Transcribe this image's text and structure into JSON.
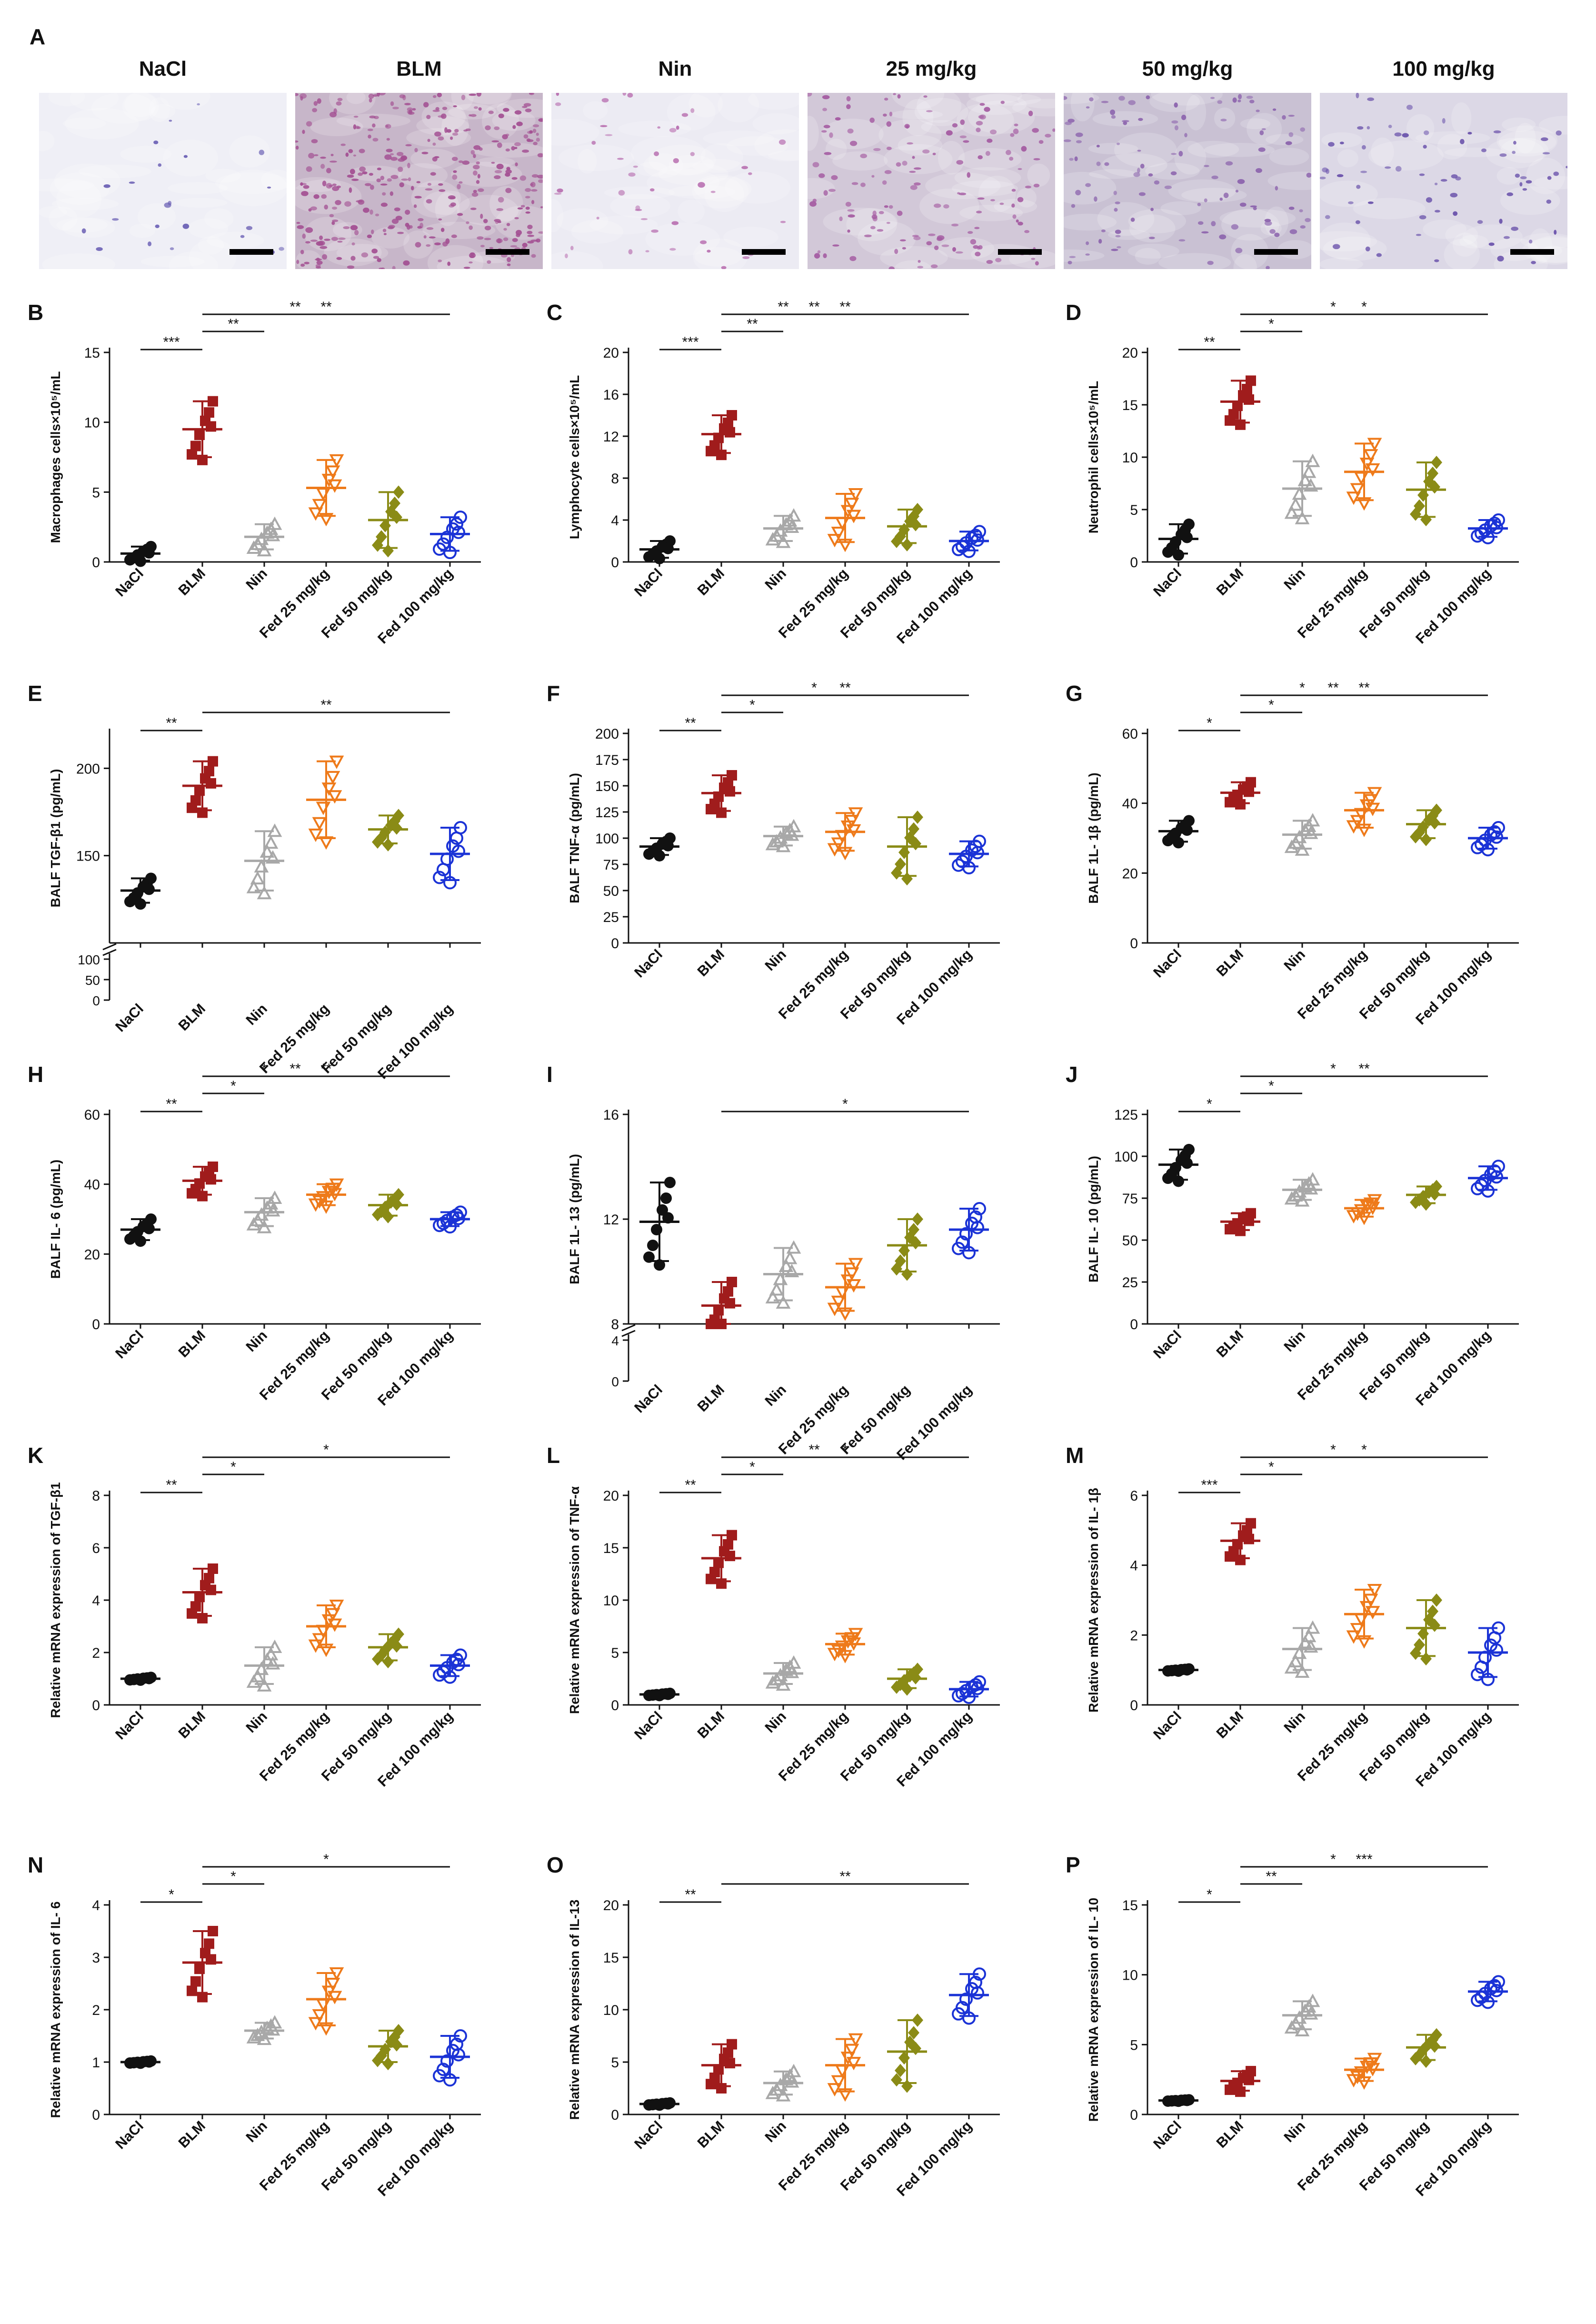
{
  "figure": {
    "micrograph_panel_letter": "A",
    "micrographs": [
      {
        "label": "NaCl",
        "stain": "#efeff6",
        "cell_color": "#6a5fb4",
        "cell_count": 22
      },
      {
        "label": "BLM",
        "stain": "#c7b6c9",
        "cell_color": "#a34f92",
        "cell_count": 360
      },
      {
        "label": "Nin",
        "stain": "#ecebf3",
        "cell_color": "#b86fb0",
        "cell_count": 45
      },
      {
        "label": "25 mg/kg",
        "stain": "#d2c8d8",
        "cell_color": "#a45aa1",
        "cell_count": 150
      },
      {
        "label": "50 mg/kg",
        "stain": "#c9c1d3",
        "cell_color": "#8c63ad",
        "cell_count": 110
      },
      {
        "label": "100 mg/kg",
        "stain": "#dcd8e6",
        "cell_color": "#6a52ab",
        "cell_count": 70
      }
    ]
  },
  "chart_data": [
    {
      "panel": "B",
      "type": "scatter",
      "ylabel": "Macrophages cells×10⁵/mL",
      "ylim": [
        0,
        15
      ],
      "yticks": [
        0,
        5,
        10,
        15
      ],
      "categories": [
        "NaCl",
        "BLM",
        "Nin",
        "Fed 25 mg/kg",
        "Fed 50 mg/kg",
        "Fed 100 mg/kg"
      ],
      "means": [
        0.6,
        9.5,
        1.8,
        5.3,
        3.0,
        2.0
      ],
      "sds": [
        0.5,
        2.0,
        0.9,
        2.0,
        2.0,
        1.2
      ],
      "sig": [
        {
          "from": 0,
          "to": 1,
          "label": "***"
        },
        {
          "from": 1,
          "to": 2,
          "label": "**"
        },
        {
          "from": 1,
          "to": 4,
          "label": "**"
        },
        {
          "from": 1,
          "to": 5,
          "label": "**"
        }
      ]
    },
    {
      "panel": "C",
      "type": "scatter",
      "ylabel": "Lymphocyte cells×10⁵/mL",
      "ylim": [
        0,
        20
      ],
      "yticks": [
        0,
        4,
        8,
        12,
        16,
        20
      ],
      "categories": [
        "NaCl",
        "BLM",
        "Nin",
        "Fed 25 mg/kg",
        "Fed 50 mg/kg",
        "Fed 100 mg/kg"
      ],
      "means": [
        1.2,
        12.2,
        3.2,
        4.2,
        3.4,
        2.0
      ],
      "sds": [
        0.8,
        1.8,
        1.2,
        2.3,
        1.6,
        0.9
      ],
      "sig": [
        {
          "from": 0,
          "to": 1,
          "label": "***"
        },
        {
          "from": 1,
          "to": 2,
          "label": "**"
        },
        {
          "from": 1,
          "to": 3,
          "label": "**"
        },
        {
          "from": 1,
          "to": 4,
          "label": "**"
        },
        {
          "from": 1,
          "to": 5,
          "label": "**"
        }
      ]
    },
    {
      "panel": "D",
      "type": "scatter",
      "ylabel": "Neutrophil cells×10⁵/mL",
      "ylim": [
        0,
        20
      ],
      "yticks": [
        0,
        5,
        10,
        15,
        20
      ],
      "categories": [
        "NaCl",
        "BLM",
        "Nin",
        "Fed 25 mg/kg",
        "Fed 50 mg/kg",
        "Fed 100 mg/kg"
      ],
      "means": [
        2.2,
        15.3,
        7.0,
        8.6,
        6.9,
        3.2
      ],
      "sds": [
        1.4,
        2.0,
        2.6,
        2.7,
        2.6,
        0.8
      ],
      "sig": [
        {
          "from": 0,
          "to": 1,
          "label": "**"
        },
        {
          "from": 1,
          "to": 2,
          "label": "*"
        },
        {
          "from": 1,
          "to": 4,
          "label": "*"
        },
        {
          "from": 1,
          "to": 5,
          "label": "*"
        }
      ]
    },
    {
      "panel": "E",
      "type": "scatter",
      "ylabel": "BALF TGF-β1 (pg/mL)",
      "ylim": [
        100,
        220
      ],
      "yticks": [
        150,
        200
      ],
      "broken_axis": {
        "lower_ticks": [
          "0",
          "50",
          "100"
        ],
        "break_value": 110
      },
      "categories": [
        "NaCl",
        "BLM",
        "Nin",
        "Fed 25 mg/kg",
        "Fed 50 mg/kg",
        "Fed 100 mg/kg"
      ],
      "means": [
        130,
        190,
        147,
        182,
        165,
        151
      ],
      "sds": [
        7,
        14,
        17,
        22,
        8,
        15
      ],
      "sig": [
        {
          "from": 0,
          "to": 1,
          "label": "**"
        },
        {
          "from": 1,
          "to": 5,
          "label": "**"
        }
      ]
    },
    {
      "panel": "F",
      "type": "scatter",
      "ylabel": "BALF TNF-α (pg/mL)",
      "ylim": [
        0,
        200
      ],
      "yticks": [
        0,
        25,
        50,
        75,
        100,
        125,
        150,
        175,
        200
      ],
      "categories": [
        "NaCl",
        "BLM",
        "Nin",
        "Fed 25 mg/kg",
        "Fed 50 mg/kg",
        "Fed 100 mg/kg"
      ],
      "means": [
        92,
        143,
        102,
        106,
        92,
        85
      ],
      "sds": [
        8,
        17,
        9,
        18,
        28,
        12
      ],
      "sig": [
        {
          "from": 0,
          "to": 1,
          "label": "**"
        },
        {
          "from": 1,
          "to": 2,
          "label": "*"
        },
        {
          "from": 1,
          "to": 4,
          "label": "*"
        },
        {
          "from": 1,
          "to": 5,
          "label": "**"
        }
      ]
    },
    {
      "panel": "G",
      "type": "scatter",
      "ylabel": "BALF 1L- 1β (pg/mL)",
      "ylim": [
        0,
        60
      ],
      "yticks": [
        0,
        20,
        40,
        60
      ],
      "categories": [
        "NaCl",
        "BLM",
        "Nin",
        "Fed 25 mg/kg",
        "Fed 50 mg/kg",
        "Fed 100 mg/kg"
      ],
      "means": [
        32,
        43,
        31,
        38,
        34,
        30
      ],
      "sds": [
        3,
        3,
        4,
        5,
        4,
        3
      ],
      "sig": [
        {
          "from": 0,
          "to": 1,
          "label": "*"
        },
        {
          "from": 1,
          "to": 2,
          "label": "*"
        },
        {
          "from": 1,
          "to": 3,
          "label": "*"
        },
        {
          "from": 1,
          "to": 4,
          "label": "**"
        },
        {
          "from": 1,
          "to": 5,
          "label": "**"
        }
      ]
    },
    {
      "panel": "H",
      "type": "scatter",
      "ylabel": "BALF IL- 6 (pg/mL)",
      "ylim": [
        0,
        60
      ],
      "yticks": [
        0,
        20,
        40,
        60
      ],
      "categories": [
        "NaCl",
        "BLM",
        "Nin",
        "Fed 25 mg/kg",
        "Fed 50 mg/kg",
        "Fed 100 mg/kg"
      ],
      "means": [
        27,
        41,
        32,
        37,
        34,
        30
      ],
      "sds": [
        3,
        4,
        4,
        3,
        3,
        2
      ],
      "sig": [
        {
          "from": 0,
          "to": 1,
          "label": "**"
        },
        {
          "from": 1,
          "to": 2,
          "label": "*"
        },
        {
          "from": 1,
          "to": 3,
          "label": "*"
        },
        {
          "from": 1,
          "to": 4,
          "label": "**"
        },
        {
          "from": 1,
          "to": 5,
          "label": "**"
        }
      ]
    },
    {
      "panel": "I",
      "type": "scatter",
      "ylabel": "BALF 1L- 13 (pg/mL)",
      "ylim": [
        8,
        16
      ],
      "yticks": [
        8,
        12,
        16
      ],
      "broken_axis": {
        "lower_ticks": [
          "0",
          "4"
        ],
        "break_value": 7.6
      },
      "categories": [
        "NaCl",
        "BLM",
        "Nin",
        "Fed 25 mg/kg",
        "Fed 50 mg/kg",
        "Fed 100 mg/kg"
      ],
      "means": [
        11.9,
        8.7,
        9.9,
        9.4,
        11.0,
        11.6
      ],
      "sds": [
        1.5,
        0.9,
        1.0,
        0.9,
        1.0,
        0.8
      ],
      "sig": [
        {
          "from": 1,
          "to": 5,
          "label": "*"
        }
      ]
    },
    {
      "panel": "J",
      "type": "scatter",
      "ylabel": "BALF IL- 10 (pg/mL)",
      "ylim": [
        0,
        125
      ],
      "yticks": [
        0,
        25,
        50,
        75,
        100,
        125
      ],
      "categories": [
        "NaCl",
        "BLM",
        "Nin",
        "Fed 25 mg/kg",
        "Fed 50 mg/kg",
        "Fed 100 mg/kg"
      ],
      "means": [
        95,
        61,
        80,
        69,
        77,
        87
      ],
      "sds": [
        9,
        5,
        6,
        5,
        5,
        7
      ],
      "sig": [
        {
          "from": 0,
          "to": 1,
          "label": "*"
        },
        {
          "from": 1,
          "to": 2,
          "label": "*"
        },
        {
          "from": 1,
          "to": 4,
          "label": "*"
        },
        {
          "from": 1,
          "to": 5,
          "label": "**"
        }
      ]
    },
    {
      "panel": "K",
      "type": "scatter",
      "ylabel": "Relative mRNA expression of TGF-β1",
      "ylim": [
        0,
        8
      ],
      "yticks": [
        0,
        2,
        4,
        6,
        8
      ],
      "categories": [
        "NaCl",
        "BLM",
        "Nin",
        "Fed 25 mg/kg",
        "Fed 50 mg/kg",
        "Fed 100 mg/kg"
      ],
      "means": [
        1.0,
        4.3,
        1.5,
        3.0,
        2.2,
        1.5
      ],
      "sds": [
        0.05,
        0.9,
        0.7,
        0.8,
        0.5,
        0.4
      ],
      "sig": [
        {
          "from": 0,
          "to": 1,
          "label": "**"
        },
        {
          "from": 1,
          "to": 2,
          "label": "*"
        },
        {
          "from": 1,
          "to": 5,
          "label": "*"
        }
      ]
    },
    {
      "panel": "L",
      "type": "scatter",
      "ylabel": "Relative mRNA expression of TNF-α",
      "ylim": [
        0,
        20
      ],
      "yticks": [
        0,
        5,
        10,
        15,
        20
      ],
      "categories": [
        "NaCl",
        "BLM",
        "Nin",
        "Fed 25 mg/kg",
        "Fed 50 mg/kg",
        "Fed 100 mg/kg"
      ],
      "means": [
        1.0,
        14.0,
        3.0,
        5.8,
        2.5,
        1.5
      ],
      "sds": [
        0.1,
        2.2,
        1.0,
        1.0,
        0.9,
        0.7
      ],
      "sig": [
        {
          "from": 0,
          "to": 1,
          "label": "**"
        },
        {
          "from": 1,
          "to": 2,
          "label": "*"
        },
        {
          "from": 1,
          "to": 4,
          "label": "**"
        },
        {
          "from": 1,
          "to": 5,
          "label": "*"
        }
      ]
    },
    {
      "panel": "M",
      "type": "scatter",
      "ylabel": "Relative mRNA expression of IL- 1β",
      "ylim": [
        0,
        6
      ],
      "yticks": [
        0,
        2,
        4,
        6
      ],
      "categories": [
        "NaCl",
        "BLM",
        "Nin",
        "Fed 25 mg/kg",
        "Fed 50 mg/kg",
        "Fed 100 mg/kg"
      ],
      "means": [
        1.0,
        4.7,
        1.6,
        2.6,
        2.2,
        1.5
      ],
      "sds": [
        0.03,
        0.5,
        0.6,
        0.7,
        0.8,
        0.7
      ],
      "sig": [
        {
          "from": 0,
          "to": 1,
          "label": "***"
        },
        {
          "from": 1,
          "to": 2,
          "label": "*"
        },
        {
          "from": 1,
          "to": 4,
          "label": "*"
        },
        {
          "from": 1,
          "to": 5,
          "label": "*"
        }
      ]
    },
    {
      "panel": "N",
      "type": "scatter",
      "ylabel": "Relative mRNA expression of IL- 6",
      "ylim": [
        0,
        4
      ],
      "yticks": [
        0,
        1,
        2,
        3,
        4
      ],
      "categories": [
        "NaCl",
        "BLM",
        "Nin",
        "Fed 25 mg/kg",
        "Fed 50 mg/kg",
        "Fed 100 mg/kg"
      ],
      "means": [
        1.0,
        2.9,
        1.6,
        2.2,
        1.3,
        1.1
      ],
      "sds": [
        0.02,
        0.6,
        0.15,
        0.5,
        0.3,
        0.4
      ],
      "sig": [
        {
          "from": 0,
          "to": 1,
          "label": "*"
        },
        {
          "from": 1,
          "to": 2,
          "label": "*"
        },
        {
          "from": 1,
          "to": 5,
          "label": "*"
        }
      ]
    },
    {
      "panel": "O",
      "type": "scatter",
      "ylabel": "Relative mRNA expression of IL-13",
      "ylim": [
        0,
        20
      ],
      "yticks": [
        0,
        5,
        10,
        15,
        20
      ],
      "categories": [
        "NaCl",
        "BLM",
        "Nin",
        "Fed 25 mg/kg",
        "Fed 50 mg/kg",
        "Fed 100 mg/kg"
      ],
      "means": [
        1.0,
        4.7,
        3.0,
        4.7,
        6.0,
        11.4
      ],
      "sds": [
        0.1,
        2.0,
        1.1,
        2.5,
        3.0,
        2.0
      ],
      "sig": [
        {
          "from": 0,
          "to": 1,
          "label": "**"
        },
        {
          "from": 1,
          "to": 5,
          "label": "**"
        }
      ]
    },
    {
      "panel": "P",
      "type": "scatter",
      "ylabel": "Relative mRNA expression of IL- 10",
      "ylim": [
        0,
        15
      ],
      "yticks": [
        0,
        5,
        10,
        15
      ],
      "categories": [
        "NaCl",
        "BLM",
        "Nin",
        "Fed 25 mg/kg",
        "Fed 50 mg/kg",
        "Fed 100 mg/kg"
      ],
      "means": [
        1.0,
        2.4,
        7.1,
        3.2,
        4.8,
        8.8
      ],
      "sds": [
        0.05,
        0.7,
        1.0,
        0.8,
        0.9,
        0.7
      ],
      "sig": [
        {
          "from": 0,
          "to": 1,
          "label": "*"
        },
        {
          "from": 1,
          "to": 2,
          "label": "**"
        },
        {
          "from": 1,
          "to": 4,
          "label": "*"
        },
        {
          "from": 1,
          "to": 5,
          "label": "***"
        }
      ]
    }
  ],
  "groups": [
    {
      "name": "NaCl",
      "color": "#111111",
      "marker": "filled-circle"
    },
    {
      "name": "BLM",
      "color": "#a01c1c",
      "marker": "filled-square"
    },
    {
      "name": "Nin",
      "color": "#a8a8a8",
      "marker": "hollow-triangle"
    },
    {
      "name": "Fed 25 mg/kg",
      "color": "#ee7a1a",
      "marker": "hollow-triangle-down"
    },
    {
      "name": "Fed 50 mg/kg",
      "color": "#8a8b16",
      "marker": "filled-diamond"
    },
    {
      "name": "Fed 100 mg/kg",
      "color": "#1b33d6",
      "marker": "hollow-circle"
    }
  ]
}
